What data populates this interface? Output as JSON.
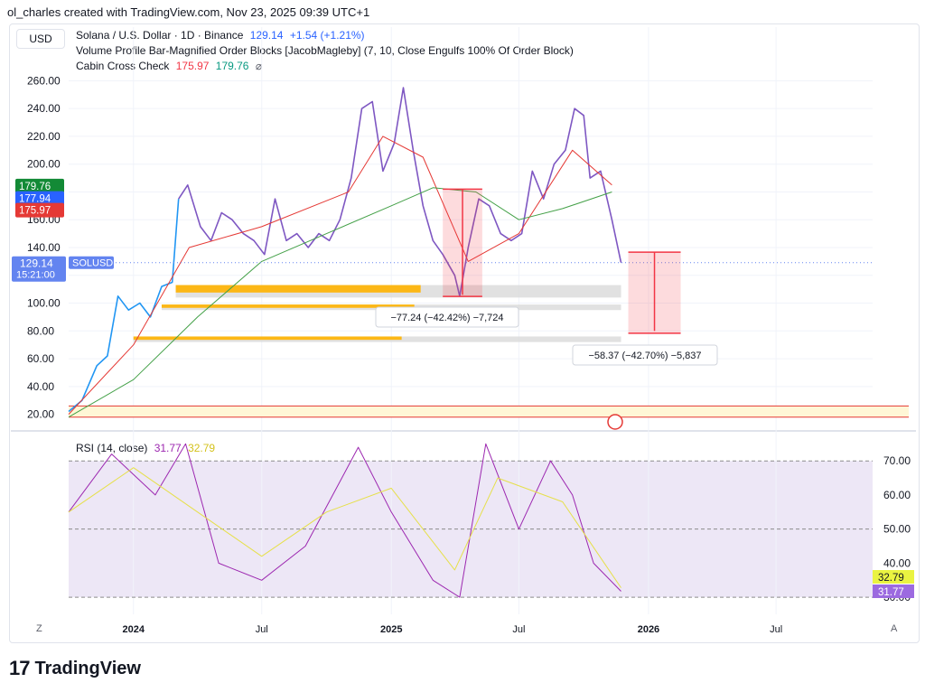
{
  "header": {
    "attribution": "ol_charles created with TradingView.com, Nov 23, 2025 09:39 UTC+1"
  },
  "currency": "USD",
  "legend": {
    "symbol_line": "Solana / U.S. Dollar · 1D · Binance",
    "price": "129.14",
    "change": "+1.54 (+1.21%)",
    "indicator1": "Volume Profile Bar-Magnified Order Blocks [JacobMagleby] (7, 10, Close Engulfs 100% Of Order Block)",
    "indicator2_name": "Cabin Cross Check",
    "indicator2_v1": "175.97",
    "indicator2_v2": "179.76",
    "indicator2_icon": "eye-off-icon",
    "rsi_name": "RSI (14, close)",
    "rsi_v1": "31.77",
    "rsi_v2": "32.79"
  },
  "price_badges": {
    "green": "179.76",
    "blue": "177.94",
    "red": "175.97",
    "last": "129.14",
    "countdown": "15:21:00",
    "symbol_tag": "SOLUSD"
  },
  "rsi_badges": {
    "yellow": "32.79",
    "purple": "31.77"
  },
  "measure_boxes": {
    "first": "−77.24 (−42.42%) −7,724",
    "second": "−58.37 (−42.70%) −5,837"
  },
  "bottom": {
    "zoom_label": "Z",
    "auto_label": "A"
  },
  "brand": {
    "logo": "17",
    "name": "TradingView"
  },
  "colors": {
    "price_early": "#2196f3",
    "price_late": "#7e57c2",
    "ma_fast": "#e53935",
    "ma_slow": "#43a047",
    "rsi": "#9c27b0",
    "rsi_ma": "#e6e04a",
    "orderblock": "#ffb300",
    "rsi_band": "#ede7f6",
    "badge_green": "#138a36",
    "badge_blue": "#2962ff",
    "badge_red": "#e53935",
    "badge_last": "#6384f0",
    "badge_yellow": "#eaf341",
    "badge_purple": "#9c6ae0"
  },
  "chart_data": [
    {
      "type": "line",
      "name": "price",
      "ylim": [
        10,
        270
      ],
      "y_ticks": [
        260,
        240,
        220,
        200,
        180,
        160,
        140,
        120,
        100,
        80,
        60,
        40,
        20
      ],
      "x_labels": [
        "2024",
        "Jul",
        "2025",
        "Jul",
        "2026",
        "Jul"
      ],
      "series": [
        {
          "name": "SOLUSD",
          "x": [
            "2023-10-01",
            "2023-10-20",
            "2023-11-10",
            "2023-11-25",
            "2023-12-10",
            "2023-12-25",
            "2024-01-10",
            "2024-01-25",
            "2024-02-10",
            "2024-02-25",
            "2024-03-05",
            "2024-03-18",
            "2024-04-05",
            "2024-04-20",
            "2024-05-05",
            "2024-05-20",
            "2024-06-05",
            "2024-06-20",
            "2024-07-05",
            "2024-07-20",
            "2024-08-05",
            "2024-08-20",
            "2024-09-05",
            "2024-09-20",
            "2024-10-05",
            "2024-10-20",
            "2024-11-05",
            "2024-11-20",
            "2024-12-05",
            "2024-12-20",
            "2025-01-05",
            "2025-01-18",
            "2025-02-01",
            "2025-02-15",
            "2025-03-01",
            "2025-03-15",
            "2025-04-01",
            "2025-04-08",
            "2025-04-20",
            "2025-05-05",
            "2025-05-20",
            "2025-06-05",
            "2025-06-20",
            "2025-07-05",
            "2025-07-20",
            "2025-08-05",
            "2025-08-20",
            "2025-09-05",
            "2025-09-18",
            "2025-10-01",
            "2025-10-10",
            "2025-10-25",
            "2025-11-10",
            "2025-11-23"
          ],
          "y": [
            22,
            30,
            55,
            62,
            105,
            95,
            100,
            90,
            112,
            115,
            175,
            185,
            155,
            145,
            165,
            160,
            150,
            145,
            135,
            175,
            145,
            150,
            140,
            150,
            145,
            160,
            190,
            240,
            245,
            195,
            215,
            255,
            210,
            170,
            145,
            135,
            120,
            105,
            140,
            175,
            170,
            150,
            145,
            150,
            195,
            175,
            200,
            210,
            240,
            235,
            190,
            195,
            160,
            129.14
          ]
        },
        {
          "name": "MA fast",
          "x": [
            "2023-10-01",
            "2024-01-01",
            "2024-03-20",
            "2024-07-01",
            "2024-11-01",
            "2024-12-20",
            "2025-02-15",
            "2025-04-20",
            "2025-07-01",
            "2025-09-15",
            "2025-11-10"
          ],
          "y": [
            20,
            70,
            140,
            155,
            180,
            220,
            205,
            130,
            150,
            210,
            185
          ]
        },
        {
          "name": "MA slow",
          "x": [
            "2023-10-01",
            "2024-01-01",
            "2024-04-01",
            "2024-07-01",
            "2024-10-01",
            "2025-01-01",
            "2025-03-01",
            "2025-05-01",
            "2025-07-01",
            "2025-09-01",
            "2025-11-10"
          ],
          "y": [
            18,
            45,
            90,
            130,
            150,
            170,
            183,
            180,
            160,
            168,
            180
          ]
        }
      ],
      "order_blocks": [
        {
          "from": "2024-03-01",
          "to": "2025-11-23",
          "top": 113,
          "bottom": 104
        },
        {
          "from": "2024-02-10",
          "to": "2025-11-23",
          "top": 99,
          "bottom": 95
        },
        {
          "from": "2024-01-01",
          "to": "2025-11-23",
          "top": 76,
          "bottom": 72
        }
      ],
      "horizontal_lines": [
        26,
        18
      ]
    },
    {
      "type": "line",
      "name": "RSI (14, close)",
      "ylim": [
        25,
        78
      ],
      "y_ticks": [
        70,
        60,
        50,
        40,
        30
      ],
      "band": [
        30,
        70
      ],
      "series": [
        {
          "name": "RSI",
          "x": [
            "2023-10-01",
            "2023-12-01",
            "2024-02-01",
            "2024-03-15",
            "2024-05-01",
            "2024-07-01",
            "2024-09-01",
            "2024-11-15",
            "2025-01-01",
            "2025-03-01",
            "2025-04-08",
            "2025-05-15",
            "2025-07-01",
            "2025-08-15",
            "2025-09-15",
            "2025-10-15",
            "2025-11-23"
          ],
          "y": [
            55,
            72,
            60,
            75,
            40,
            35,
            45,
            74,
            55,
            35,
            30,
            75,
            50,
            70,
            60,
            40,
            31.77
          ]
        },
        {
          "name": "RSI MA",
          "x": [
            "2023-10-01",
            "2024-01-01",
            "2024-04-01",
            "2024-07-01",
            "2024-10-01",
            "2025-01-01",
            "2025-04-01",
            "2025-06-01",
            "2025-09-01",
            "2025-11-23"
          ],
          "y": [
            55,
            68,
            55,
            42,
            55,
            62,
            38,
            65,
            58,
            32.79
          ]
        }
      ]
    }
  ]
}
